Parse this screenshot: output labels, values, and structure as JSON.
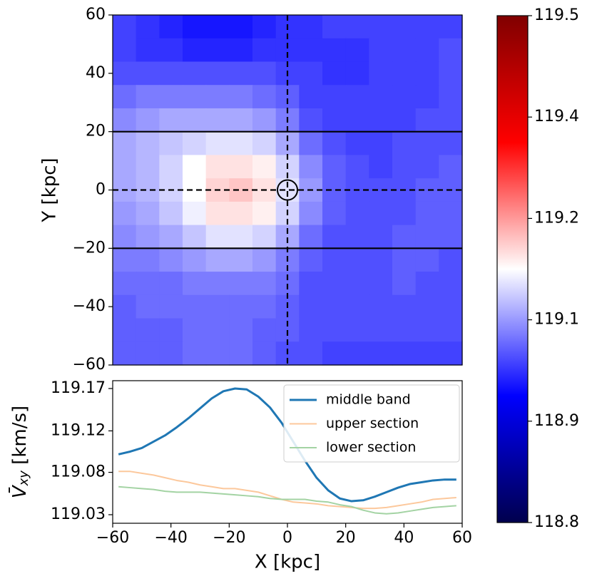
{
  "chart_data": [
    {
      "type": "heatmap",
      "ylabel": "Y [kpc]",
      "xlim": [
        -60,
        60
      ],
      "ylim": [
        -60,
        60
      ],
      "yticks": [
        60,
        40,
        20,
        0,
        {
          "value": -20,
          "label": "−20"
        },
        {
          "value": -40,
          "label": "−40"
        },
        {
          "value": -60,
          "label": "−60"
        }
      ],
      "origin": "upper",
      "cmap": "seismic",
      "clim": [
        118.8,
        119.5
      ],
      "cticks": [
        {
          "value": 119.5,
          "label": "119.5"
        },
        {
          "value": 119.36,
          "label": "119.4"
        },
        {
          "value": 119.22,
          "label": "119.2"
        },
        {
          "value": 119.08,
          "label": "119.1"
        },
        {
          "value": 118.94,
          "label": "118.9"
        },
        {
          "value": 118.8,
          "label": "118.8"
        }
      ],
      "section_bounds": [
        20,
        -20
      ],
      "center": [
        0,
        0
      ],
      "z": [
        [
          119.02,
          119.01,
          119.0,
          118.99,
          118.99,
          118.99,
          119.0,
          119.01,
          119.01,
          119.02,
          119.02,
          119.02,
          119.02,
          119.02,
          119.02
        ],
        [
          119.02,
          119.01,
          119.01,
          119.0,
          119.0,
          119.0,
          119.01,
          119.01,
          119.01,
          119.01,
          119.01,
          119.02,
          119.02,
          119.02,
          119.03
        ],
        [
          119.03,
          119.03,
          119.03,
          119.03,
          119.03,
          119.03,
          119.03,
          119.02,
          119.02,
          119.01,
          119.01,
          119.02,
          119.02,
          119.02,
          119.03
        ],
        [
          119.05,
          119.06,
          119.06,
          119.06,
          119.06,
          119.06,
          119.05,
          119.04,
          119.02,
          119.02,
          119.02,
          119.02,
          119.02,
          119.02,
          119.03
        ],
        [
          119.07,
          119.08,
          119.09,
          119.09,
          119.09,
          119.09,
          119.08,
          119.06,
          119.03,
          119.02,
          119.02,
          119.02,
          119.02,
          119.03,
          119.03
        ],
        [
          119.09,
          119.1,
          119.11,
          119.12,
          119.13,
          119.13,
          119.12,
          119.09,
          119.05,
          119.03,
          119.02,
          119.02,
          119.03,
          119.03,
          119.03
        ],
        [
          119.09,
          119.1,
          119.12,
          119.15,
          119.17,
          119.17,
          119.16,
          119.12,
          119.07,
          119.04,
          119.03,
          119.02,
          119.03,
          119.03,
          119.04
        ],
        [
          119.09,
          119.1,
          119.12,
          119.15,
          119.18,
          119.19,
          119.17,
          119.13,
          119.08,
          119.04,
          119.03,
          119.03,
          119.03,
          119.04,
          119.04
        ],
        [
          119.08,
          119.09,
          119.11,
          119.14,
          119.17,
          119.17,
          119.16,
          119.12,
          119.07,
          119.04,
          119.03,
          119.03,
          119.03,
          119.04,
          119.04
        ],
        [
          119.07,
          119.08,
          119.09,
          119.11,
          119.13,
          119.13,
          119.12,
          119.09,
          119.05,
          119.03,
          119.03,
          119.03,
          119.04,
          119.04,
          119.04
        ],
        [
          119.06,
          119.06,
          119.07,
          119.08,
          119.09,
          119.09,
          119.08,
          119.06,
          119.04,
          119.03,
          119.03,
          119.03,
          119.04,
          119.04,
          119.03
        ],
        [
          119.05,
          119.05,
          119.05,
          119.06,
          119.06,
          119.06,
          119.06,
          119.05,
          119.03,
          119.03,
          119.03,
          119.03,
          119.04,
          119.03,
          119.03
        ],
        [
          119.04,
          119.05,
          119.05,
          119.05,
          119.05,
          119.05,
          119.05,
          119.04,
          119.03,
          119.03,
          119.03,
          119.03,
          119.03,
          119.03,
          119.03
        ],
        [
          119.04,
          119.04,
          119.04,
          119.05,
          119.05,
          119.05,
          119.04,
          119.04,
          119.03,
          119.03,
          119.03,
          119.03,
          119.03,
          119.03,
          119.03
        ],
        [
          119.04,
          119.04,
          119.04,
          119.05,
          119.05,
          119.05,
          119.04,
          119.03,
          119.03,
          119.02,
          119.02,
          119.02,
          119.02,
          119.02,
          119.02
        ]
      ]
    },
    {
      "type": "line",
      "xlabel": "X [kpc]",
      "ylabel": {
        "symbol": "V̄",
        "subscript": "xy",
        "unit": " [km/s]"
      },
      "xlim": [
        -60,
        60
      ],
      "ylim": [
        119.0215,
        119.1797
      ],
      "xticks": [
        {
          "value": -60,
          "label": "−60"
        },
        {
          "value": -40,
          "label": "−40"
        },
        {
          "value": -20,
          "label": "−20"
        },
        0,
        20,
        40,
        60
      ],
      "yticks": [
        {
          "value": 119.031,
          "label": "119.03"
        },
        {
          "value": 119.078,
          "label": "119.08"
        },
        {
          "value": 119.124,
          "label": "119.12"
        },
        {
          "value": 119.171,
          "label": "119.17"
        }
      ],
      "legend": "upper right",
      "x": [
        -58,
        -54,
        -50,
        -46,
        -42,
        -38,
        -34,
        -30,
        -26,
        -22,
        -18,
        -14,
        -10,
        -6,
        -2,
        2,
        6,
        10,
        14,
        18,
        22,
        26,
        30,
        34,
        38,
        42,
        46,
        50,
        54,
        58
      ],
      "series": [
        {
          "name": "middle band",
          "color": "#1f77b4",
          "values": [
            119.098,
            119.101,
            119.105,
            119.112,
            119.119,
            119.128,
            119.138,
            119.149,
            119.16,
            119.168,
            119.171,
            119.17,
            119.162,
            119.15,
            119.133,
            119.112,
            119.091,
            119.072,
            119.058,
            119.049,
            119.046,
            119.047,
            119.051,
            119.056,
            119.061,
            119.065,
            119.067,
            119.069,
            119.07,
            119.07
          ]
        },
        {
          "name": "upper section",
          "color": "#fcc89c",
          "values": [
            119.079,
            119.079,
            119.077,
            119.075,
            119.072,
            119.069,
            119.067,
            119.064,
            119.062,
            119.06,
            119.06,
            119.058,
            119.056,
            119.052,
            119.048,
            119.045,
            119.044,
            119.043,
            119.041,
            119.04,
            119.039,
            119.038,
            119.038,
            119.039,
            119.041,
            119.043,
            119.045,
            119.048,
            119.049,
            119.05
          ]
        },
        {
          "name": "lower section",
          "color": "#a3d3a3",
          "values": [
            119.062,
            119.061,
            119.06,
            119.059,
            119.057,
            119.056,
            119.056,
            119.056,
            119.055,
            119.054,
            119.053,
            119.052,
            119.051,
            119.049,
            119.048,
            119.048,
            119.048,
            119.046,
            119.045,
            119.042,
            119.04,
            119.036,
            119.033,
            119.032,
            119.033,
            119.035,
            119.037,
            119.039,
            119.04,
            119.041
          ]
        }
      ]
    }
  ]
}
